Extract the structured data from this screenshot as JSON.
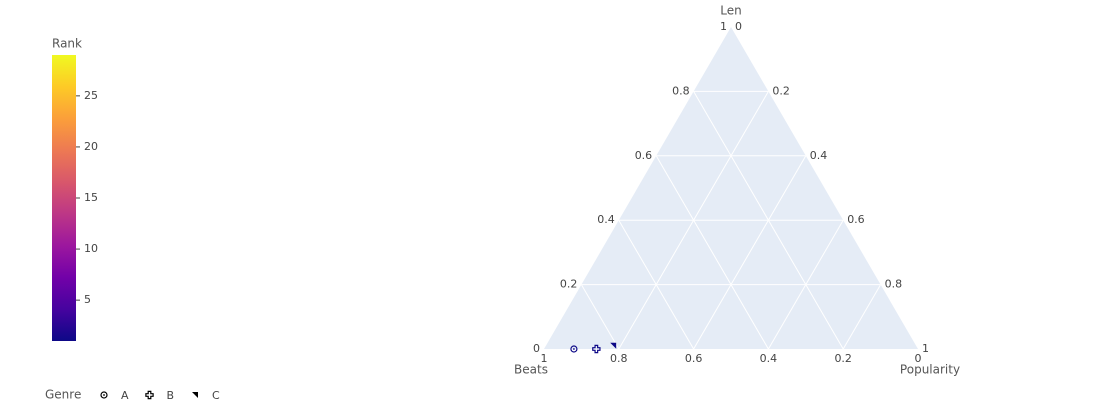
{
  "chart_data": {
    "type": "ternary",
    "axes": {
      "a": {
        "title": "Len",
        "ticks": [
          0,
          0.2,
          0.4,
          0.6,
          0.8,
          1
        ]
      },
      "b": {
        "title": "Beats",
        "ticks": [
          0,
          0.2,
          0.4,
          0.6,
          0.8,
          1
        ]
      },
      "c": {
        "title": "Popularity",
        "ticks": [
          0,
          0.2,
          0.4,
          0.6,
          0.8,
          1
        ]
      }
    },
    "colorbar": {
      "title": "Rank",
      "range": [
        1,
        29
      ],
      "ticks": [
        5,
        10,
        15,
        20,
        25
      ],
      "colorscale": [
        "#0d0887",
        "#46039f",
        "#7201a8",
        "#9c179e",
        "#bd3786",
        "#d8576b",
        "#ed7953",
        "#fb9f3a",
        "#fdca26",
        "#f0f921"
      ]
    },
    "legend_title": "Genre",
    "series": [
      {
        "name": "A",
        "symbol": "circle-open-dot",
        "a": [
          0
        ],
        "b": [
          0.92
        ],
        "c": [
          0.08
        ],
        "rank": [
          1
        ]
      },
      {
        "name": "B",
        "symbol": "cross-open",
        "a": [
          0
        ],
        "b": [
          0.86
        ],
        "c": [
          0.14
        ],
        "rank": [
          1
        ]
      },
      {
        "name": "C",
        "symbol": "triangle-ne",
        "a": [
          0.01
        ],
        "b": [
          0.81
        ],
        "c": [
          0.18
        ],
        "rank": [
          1
        ]
      }
    ]
  }
}
